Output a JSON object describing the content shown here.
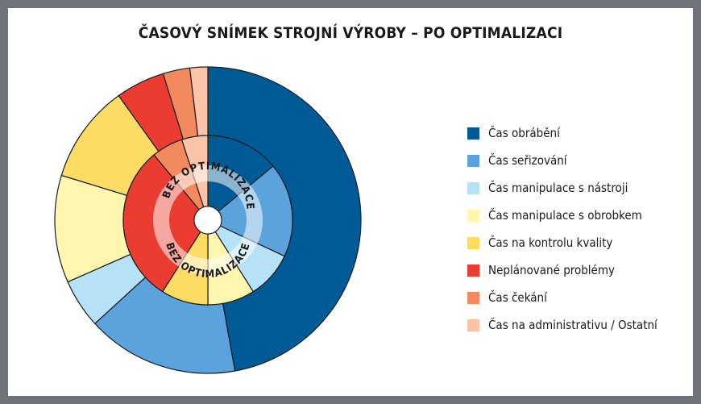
{
  "title": "ČASOVÝ SNÍMEK STROJNÍ VÝROBY – PO OPTIMALIZACI",
  "chart_data": {
    "type": "pie",
    "subtype": "nested-donut",
    "categories": [
      "Čas obrábění",
      "Čas seřizování",
      "Čas manipulace s nástroji",
      "Čas manipulace s obrobkem",
      "Čas na kontrolu kvality",
      "Neplánované problémy",
      "Čas čekání",
      "Čas na administrativu / Ostatní"
    ],
    "colors": [
      "#005a96",
      "#5ba3dc",
      "#b6e2f7",
      "#fff7b0",
      "#fcdc64",
      "#eb3c32",
      "#f28a5e",
      "#fbc4a6"
    ],
    "series": [
      {
        "ring": "outer",
        "values": [
          50,
          17,
          5.5,
          12,
          11,
          5.5,
          3,
          2
        ]
      },
      {
        "ring": "inner",
        "name": "BEZ OPTIMALIZACE",
        "values": [
          14,
          18,
          9,
          9,
          9,
          30,
          6,
          5
        ]
      }
    ],
    "ring_label": "BEZ OPTIMALIZACE",
    "legend": "right"
  }
}
